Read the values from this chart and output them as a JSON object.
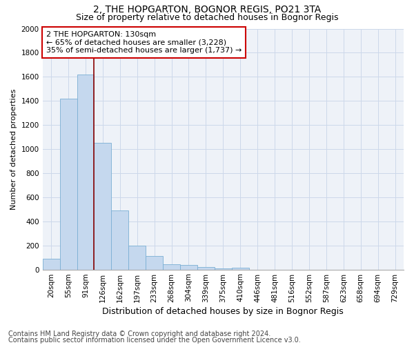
{
  "title": "2, THE HOPGARTON, BOGNOR REGIS, PO21 3TA",
  "subtitle": "Size of property relative to detached houses in Bognor Regis",
  "xlabel": "Distribution of detached houses by size in Bognor Regis",
  "ylabel": "Number of detached properties",
  "footnote1": "Contains HM Land Registry data © Crown copyright and database right 2024.",
  "footnote2": "Contains public sector information licensed under the Open Government Licence v3.0.",
  "annotation_title": "2 THE HOPGARTON: 130sqm",
  "annotation_line1": "← 65% of detached houses are smaller (3,228)",
  "annotation_line2": "35% of semi-detached houses are larger (1,737) →",
  "categories": [
    "20sqm",
    "55sqm",
    "91sqm",
    "126sqm",
    "162sqm",
    "197sqm",
    "233sqm",
    "268sqm",
    "304sqm",
    "339sqm",
    "375sqm",
    "410sqm",
    "446sqm",
    "481sqm",
    "516sqm",
    "552sqm",
    "587sqm",
    "623sqm",
    "658sqm",
    "694sqm",
    "729sqm"
  ],
  "values": [
    90,
    1420,
    1620,
    1050,
    490,
    200,
    110,
    45,
    35,
    20,
    10,
    15,
    0,
    0,
    0,
    0,
    0,
    0,
    0,
    0,
    0
  ],
  "bar_color": "#c5d8ee",
  "bar_edge_color": "#7aafd4",
  "vline_color": "#880000",
  "annotation_box_color": "#cc0000",
  "grid_color": "#ccd8ea",
  "bg_color": "#eef2f8",
  "ylim": [
    0,
    2000
  ],
  "yticks": [
    0,
    200,
    400,
    600,
    800,
    1000,
    1200,
    1400,
    1600,
    1800,
    2000
  ],
  "title_fontsize": 10,
  "subtitle_fontsize": 9,
  "annot_fontsize": 8,
  "xlabel_fontsize": 9,
  "ylabel_fontsize": 8,
  "footnote_fontsize": 7,
  "tick_fontsize": 7.5,
  "vline_x_index": 3
}
